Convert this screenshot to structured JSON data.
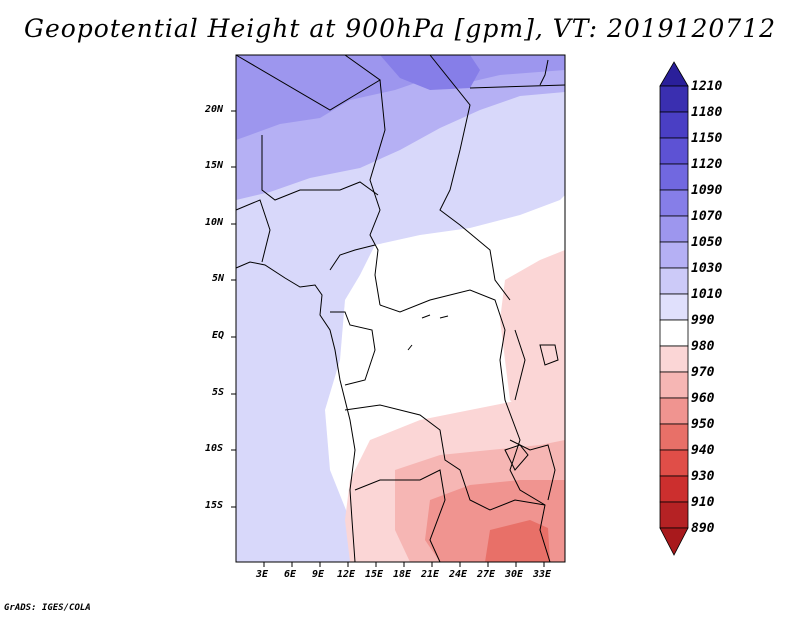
{
  "title": "Geopotential Height at 900hPa [gpm], VT: 2019120712",
  "credit": "GrADS: IGES/COLA",
  "map": {
    "x_ticks": [
      "3E",
      "6E",
      "9E",
      "12E",
      "15E",
      "18E",
      "21E",
      "24E",
      "27E",
      "30E",
      "33E"
    ],
    "y_ticks": [
      "20N",
      "15N",
      "10N",
      "5N",
      "EQ",
      "5S",
      "10S",
      "15S"
    ],
    "lon_range": [
      0,
      34
    ],
    "lat_range": [
      -20,
      25
    ]
  },
  "colorbar": {
    "levels": [
      "1210",
      "1180",
      "1150",
      "1120",
      "1090",
      "1070",
      "1050",
      "1030",
      "1010",
      "990",
      "980",
      "970",
      "960",
      "950",
      "940",
      "930",
      "910",
      "890"
    ],
    "colors": [
      "#2a1f9a",
      "#3a2fb0",
      "#4a3fc4",
      "#5d52d4",
      "#7168e0",
      "#867ee8",
      "#9d96ee",
      "#b5b0f4",
      "#cccaf8",
      "#e0e0fc",
      "#ffffff",
      "#fbd6d6",
      "#f6b6b4",
      "#f09490",
      "#e87068",
      "#e04e48",
      "#cc2f2e",
      "#a8191c"
    ]
  }
}
